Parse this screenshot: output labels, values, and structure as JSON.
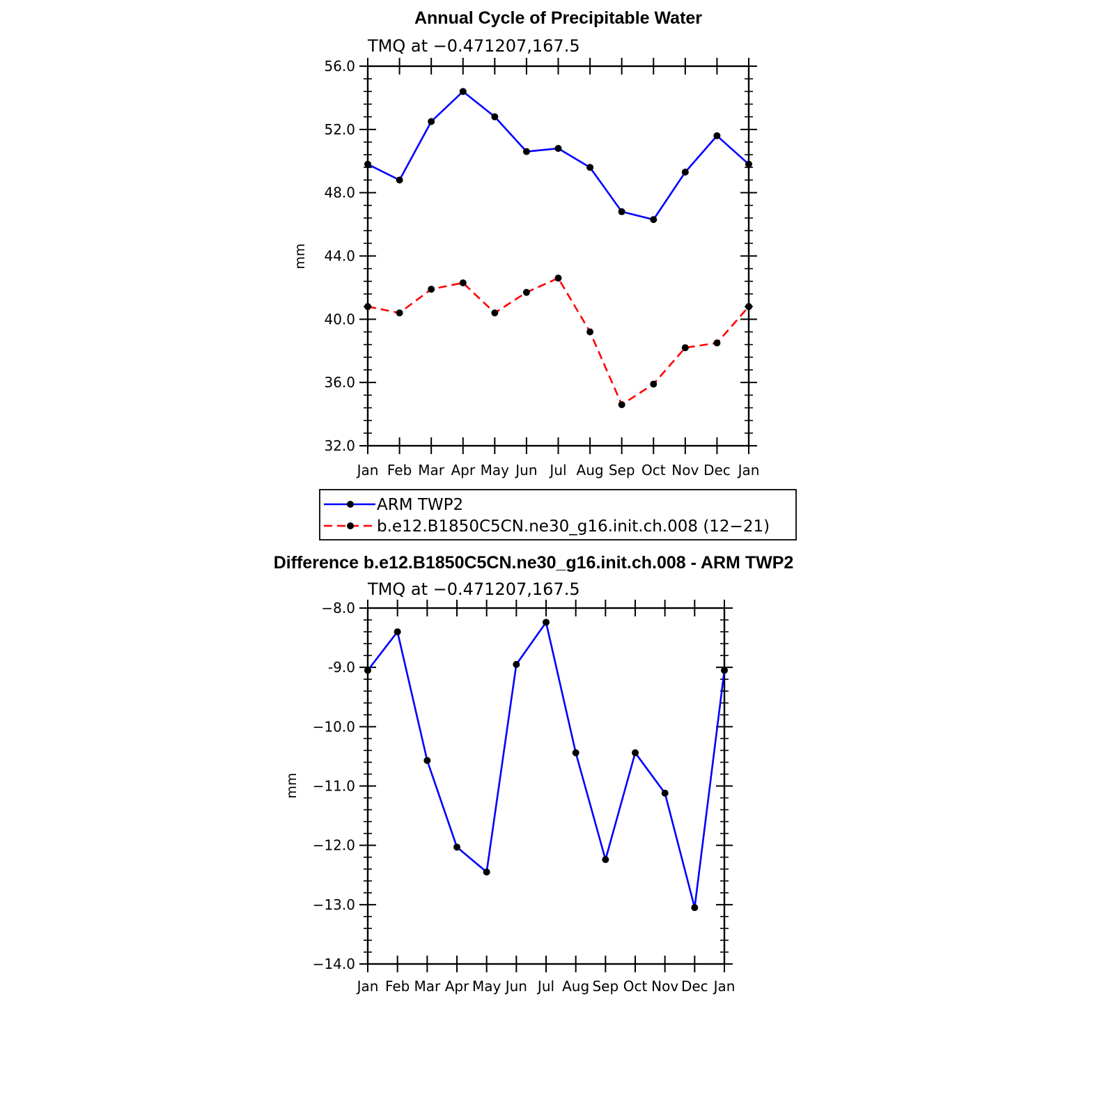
{
  "chart_data": [
    {
      "type": "line",
      "title": "Annual Cycle of Precipitable Water",
      "subtitle": "TMQ at −0.471207,167.5",
      "xlabel": "",
      "ylabel": "mm",
      "categories": [
        "Jan",
        "Feb",
        "Mar",
        "Apr",
        "May",
        "Jun",
        "Jul",
        "Aug",
        "Sep",
        "Oct",
        "Nov",
        "Dec",
        "Jan"
      ],
      "ylim": [
        32,
        56
      ],
      "yticks": [
        "32.0",
        "36.0",
        "40.0",
        "44.0",
        "48.0",
        "52.0",
        "56.0"
      ],
      "series": [
        {
          "name": "ARM TWP2",
          "color": "#0000ff",
          "dashed": false,
          "values": [
            49.8,
            48.8,
            52.5,
            54.4,
            52.8,
            50.6,
            50.8,
            49.6,
            46.8,
            46.3,
            49.3,
            51.6,
            49.8
          ]
        },
        {
          "name": "b.e12.B1850C5CN.ne30_g16.init.ch.008 (12−21)",
          "color": "#ff0000",
          "dashed": true,
          "values": [
            40.8,
            40.4,
            41.9,
            42.3,
            40.4,
            41.7,
            42.6,
            39.2,
            34.6,
            35.9,
            38.2,
            38.5,
            40.8
          ]
        }
      ],
      "legend": "bottom"
    },
    {
      "type": "line",
      "title": "Difference b.e12.B1850C5CN.ne30_g16.init.ch.008 - ARM TWP2",
      "subtitle": "TMQ at −0.471207,167.5",
      "xlabel": "",
      "ylabel": "mm",
      "categories": [
        "Jan",
        "Feb",
        "Mar",
        "Apr",
        "May",
        "Jun",
        "Jul",
        "Aug",
        "Sep",
        "Oct",
        "Nov",
        "Dec",
        "Jan"
      ],
      "ylim": [
        -14,
        -8
      ],
      "yticks": [
        "−14.0",
        "−13.0",
        "−12.0",
        "−11.0",
        "−10.0",
        "-9.0",
        "−8.0"
      ],
      "series": [
        {
          "name": "Difference",
          "color": "#0000ff",
          "dashed": false,
          "values": [
            -9.05,
            -8.4,
            -10.57,
            -12.03,
            -12.45,
            -8.95,
            -8.24,
            -10.44,
            -12.24,
            -10.44,
            -11.12,
            -13.05,
            -9.05
          ]
        }
      ]
    }
  ]
}
